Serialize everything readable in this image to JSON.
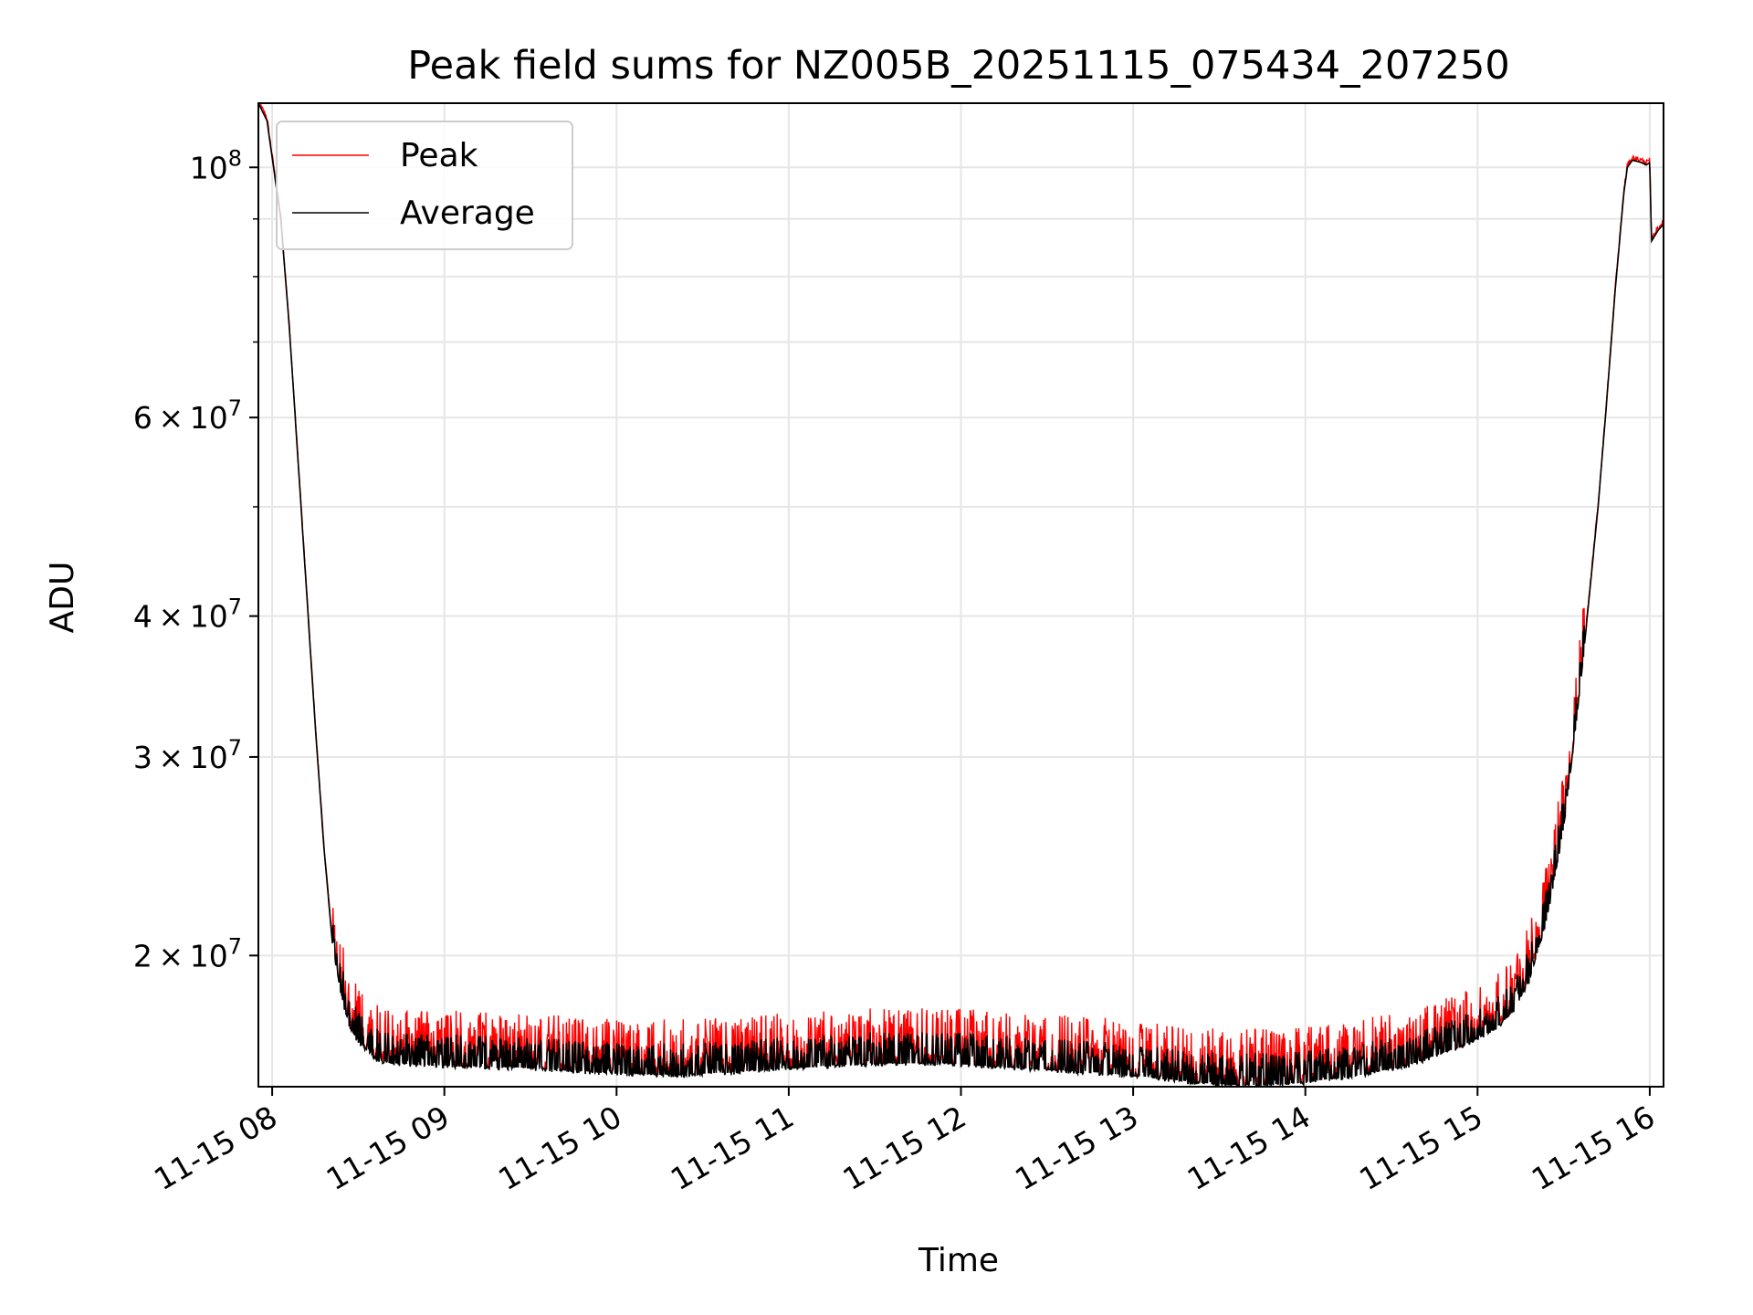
{
  "chart_data": {
    "type": "line",
    "title": "Peak field sums for NZ005B_20251115_075434_207250",
    "xlabel": "Time",
    "ylabel": "ADU",
    "yscale": "log",
    "grid": true,
    "legend_position": "upper-left",
    "x_range_hours": [
      7.92,
      16.08
    ],
    "y_range": [
      15300000,
      114000000
    ],
    "x_ticks": [
      {
        "hour": 8,
        "label": "11-15 08"
      },
      {
        "hour": 9,
        "label": "11-15 09"
      },
      {
        "hour": 10,
        "label": "11-15 10"
      },
      {
        "hour": 11,
        "label": "11-15 11"
      },
      {
        "hour": 12,
        "label": "11-15 12"
      },
      {
        "hour": 13,
        "label": "11-15 13"
      },
      {
        "hour": 14,
        "label": "11-15 14"
      },
      {
        "hour": 15,
        "label": "11-15 15"
      },
      {
        "hour": 16,
        "label": "11-15 16"
      }
    ],
    "y_ticks": [
      {
        "value": 20000000,
        "mantissa": "2",
        "base": "10",
        "exp": "7"
      },
      {
        "value": 30000000,
        "mantissa": "3",
        "base": "10",
        "exp": "7"
      },
      {
        "value": 40000000,
        "mantissa": "4",
        "base": "10",
        "exp": "7"
      },
      {
        "value": 60000000,
        "mantissa": "6",
        "base": "10",
        "exp": "7"
      },
      {
        "value": 100000000,
        "mantissa": "",
        "base": "10",
        "exp": "8"
      }
    ],
    "y_minor_ticks": [
      50000000,
      70000000,
      80000000,
      90000000
    ],
    "series": [
      {
        "name": "Peak",
        "color": "#ff0000",
        "spike_amplitude_frac": [
          0.0,
          0.12
        ]
      },
      {
        "name": "Average",
        "color": "#000000"
      }
    ],
    "average_baseline": [
      [
        7.92,
        114000000
      ],
      [
        7.97,
        110000000
      ],
      [
        8.05,
        90000000
      ],
      [
        8.1,
        72000000
      ],
      [
        8.15,
        55000000
      ],
      [
        8.2,
        42000000
      ],
      [
        8.25,
        32000000
      ],
      [
        8.3,
        25000000
      ],
      [
        8.35,
        20500000
      ],
      [
        8.4,
        18500000
      ],
      [
        8.45,
        17300000
      ],
      [
        8.5,
        16800000
      ],
      [
        8.6,
        16200000
      ],
      [
        8.7,
        16050000
      ],
      [
        8.9,
        16000000
      ],
      [
        9.2,
        15950000
      ],
      [
        9.5,
        15900000
      ],
      [
        9.8,
        15800000
      ],
      [
        10.1,
        15700000
      ],
      [
        10.4,
        15680000
      ],
      [
        10.7,
        15780000
      ],
      [
        11.0,
        15900000
      ],
      [
        11.3,
        16000000
      ],
      [
        11.6,
        16050000
      ],
      [
        11.9,
        16050000
      ],
      [
        12.2,
        15950000
      ],
      [
        12.5,
        15850000
      ],
      [
        12.8,
        15750000
      ],
      [
        13.1,
        15600000
      ],
      [
        13.4,
        15420000
      ],
      [
        13.6,
        15350000
      ],
      [
        13.8,
        15370000
      ],
      [
        14.0,
        15450000
      ],
      [
        14.3,
        15650000
      ],
      [
        14.6,
        16000000
      ],
      [
        14.9,
        16600000
      ],
      [
        15.1,
        17200000
      ],
      [
        15.2,
        17800000
      ],
      [
        15.3,
        19000000
      ],
      [
        15.4,
        21500000
      ],
      [
        15.5,
        26000000
      ],
      [
        15.6,
        35000000
      ],
      [
        15.7,
        50000000
      ],
      [
        15.75,
        62000000
      ],
      [
        15.8,
        78000000
      ],
      [
        15.85,
        95000000
      ],
      [
        15.87,
        100000000
      ],
      [
        15.9,
        101500000
      ],
      [
        15.95,
        101000000
      ],
      [
        15.98,
        100500000
      ],
      [
        16.0,
        101000000
      ],
      [
        16.01,
        86000000
      ],
      [
        16.05,
        88000000
      ],
      [
        16.08,
        89000000
      ]
    ]
  }
}
